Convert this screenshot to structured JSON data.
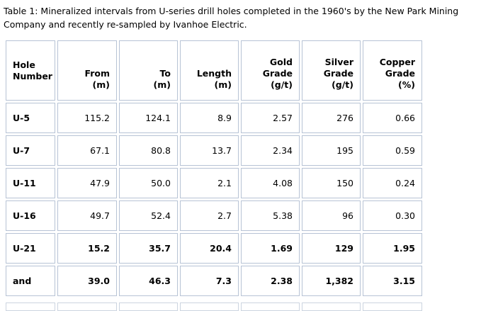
{
  "caption": "Table 1: Mineralized intervals from U-series drill holes completed in the 1960's by the New Park Mining\nCompany and recently re-sampled by Ivanhoe Electric.",
  "colors": {
    "border": "#b7c3d5",
    "partial_row_border": "#ccd4e0",
    "text": "#000000",
    "background": "#ffffff"
  },
  "table": {
    "columns": [
      {
        "key": "hole-number",
        "label": "Hole\nNumber"
      },
      {
        "key": "from-m",
        "label": "From\n(m)"
      },
      {
        "key": "to-m",
        "label": "To\n(m)"
      },
      {
        "key": "length-m",
        "label": "Length\n(m)"
      },
      {
        "key": "gold-grade",
        "label": "Gold\nGrade\n(g/t)"
      },
      {
        "key": "silver-grade",
        "label": "Silver\nGrade\n(g/t)"
      },
      {
        "key": "copper-grade",
        "label": "Copper\nGrade\n(%)"
      }
    ],
    "rows": [
      {
        "bold": false,
        "cells": [
          "U-5",
          "115.2",
          "124.1",
          "8.9",
          "2.57",
          "276",
          "0.66"
        ]
      },
      {
        "bold": false,
        "cells": [
          "U-7",
          "67.1",
          "80.8",
          "13.7",
          "2.34",
          "195",
          "0.59"
        ]
      },
      {
        "bold": false,
        "cells": [
          "U-11",
          "47.9",
          "50.0",
          "2.1",
          "4.08",
          "150",
          "0.24"
        ]
      },
      {
        "bold": false,
        "cells": [
          "U-16",
          "49.7",
          "52.4",
          "2.7",
          "5.38",
          "96",
          "0.30"
        ]
      },
      {
        "bold": true,
        "cells": [
          "U-21",
          "15.2",
          "35.7",
          "20.4",
          "1.69",
          "129",
          "1.95"
        ]
      },
      {
        "bold": true,
        "cells": [
          "and",
          "39.0",
          "46.3",
          "7.3",
          "2.38",
          "1,382",
          "3.15"
        ]
      }
    ]
  }
}
